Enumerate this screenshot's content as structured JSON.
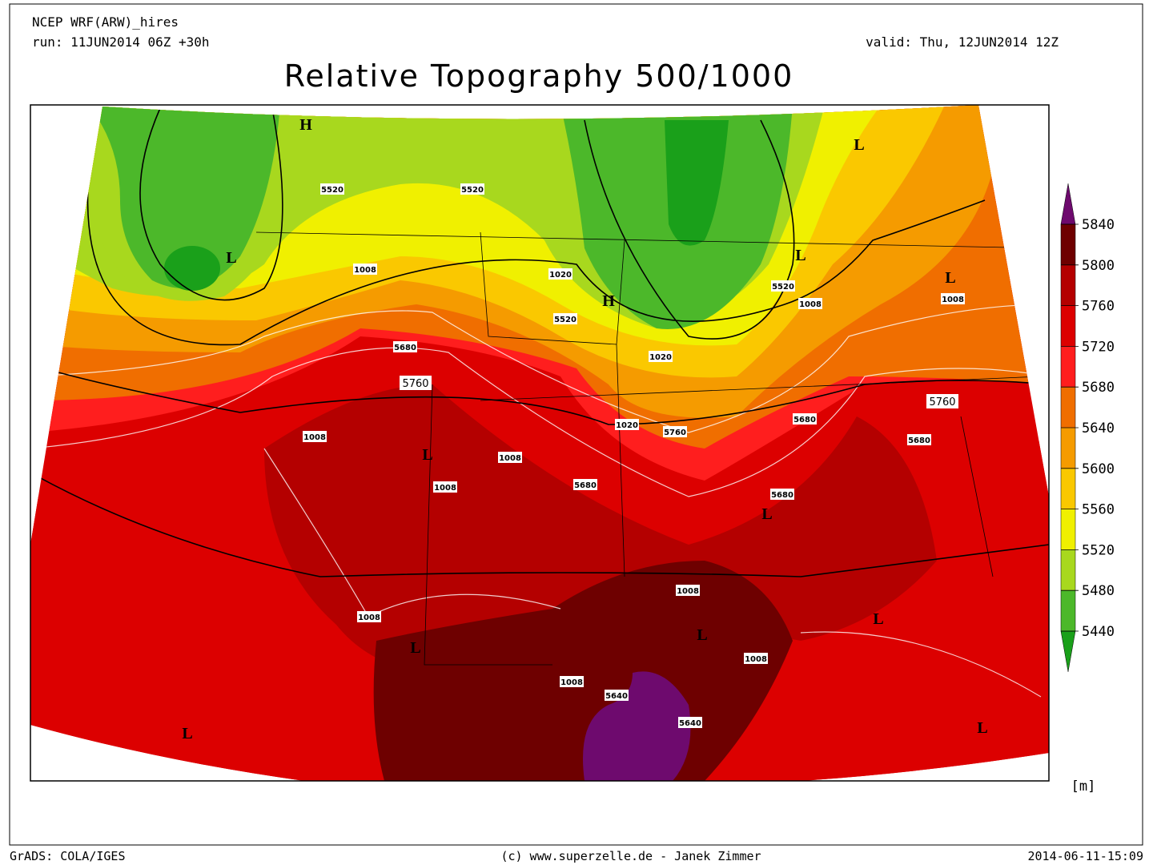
{
  "header": {
    "model": "NCEP WRF(ARW)_hires",
    "run": "run: 11JUN2014 06Z +30h",
    "valid": "valid: Thu, 12JUN2014 12Z",
    "title": "Relative Topography 500/1000"
  },
  "colorbar": {
    "levels": [
      5440,
      5480,
      5520,
      5560,
      5600,
      5640,
      5680,
      5720,
      5760,
      5800,
      5840
    ],
    "colors": [
      "#1aa01a",
      "#4cb82a",
      "#a8d81e",
      "#f0f000",
      "#fac800",
      "#f59b00",
      "#f06e00",
      "#ff1e1e",
      "#dc0000",
      "#b40000",
      "#6e0000",
      "#6e0a6e"
    ],
    "unit": "[m]"
  },
  "map": {
    "contour_labels": [
      "5520",
      "5520",
      "1008",
      "1020",
      "5520",
      "1008",
      "5520",
      "1008",
      "5680",
      "1020",
      "5760",
      "5760",
      "5680",
      "1020",
      "5760",
      "5680",
      "1008",
      "1008",
      "1008",
      "5680",
      "5680",
      "1008",
      "1008",
      "1008",
      "5640",
      "5640",
      "1008"
    ],
    "centers": [
      "H",
      "L",
      "L",
      "L",
      "L",
      "H",
      "L",
      "L",
      "L",
      "L",
      "L",
      "L",
      "L"
    ]
  },
  "footer": {
    "left": "GrADS: COLA/IGES",
    "center": "(c) www.superzelle.de - Janek Zimmer",
    "right": "2014-06-11-15:09"
  }
}
